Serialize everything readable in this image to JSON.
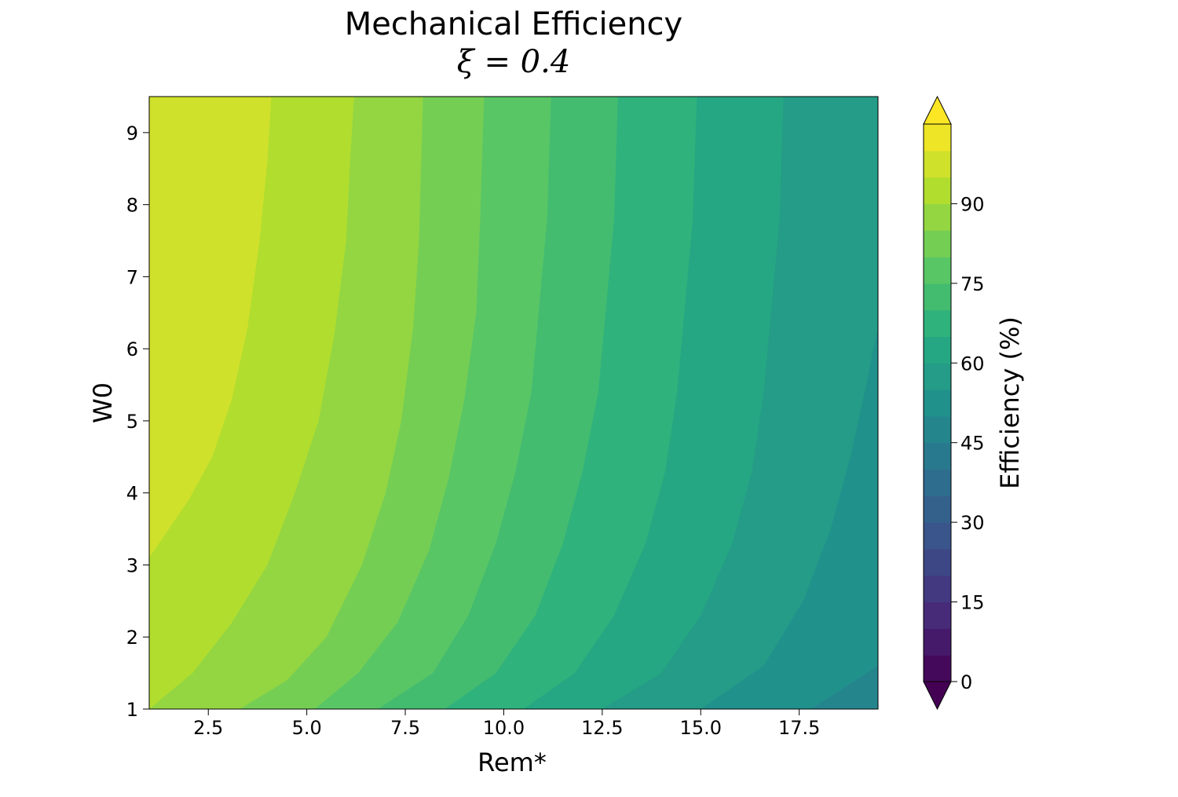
{
  "chart_data": {
    "type": "contour",
    "title": "Mechanical Efficiency",
    "subtitle": "ξ = 0.4",
    "xlabel": "Rem*",
    "ylabel": "W0",
    "xlim": [
      1.0,
      19.5
    ],
    "ylim": [
      1.0,
      9.5
    ],
    "x_ticks": [
      "2.5",
      "5.0",
      "7.5",
      "10.0",
      "12.5",
      "15.0",
      "17.5"
    ],
    "y_ticks": [
      "1",
      "2",
      "3",
      "4",
      "5",
      "6",
      "7",
      "8",
      "9"
    ],
    "colorbar": {
      "label": "Efficiency (%)",
      "range": [
        0,
        105
      ],
      "level_step": 5,
      "ticks": [
        "0",
        "15",
        "30",
        "45",
        "60",
        "75",
        "90"
      ],
      "extend": "both",
      "colormap": "viridis"
    },
    "contour_boundaries": [
      {
        "level": 95,
        "points": [
          [
            1.0,
            3.1
          ],
          [
            2.0,
            3.9
          ],
          [
            2.6,
            4.5
          ],
          [
            3.1,
            5.3
          ],
          [
            3.5,
            6.3
          ],
          [
            3.8,
            7.5
          ],
          [
            4.0,
            8.6
          ],
          [
            4.1,
            9.5
          ]
        ]
      },
      {
        "level": 90,
        "points": [
          [
            1.0,
            1.0
          ],
          [
            2.1,
            1.5
          ],
          [
            3.1,
            2.2
          ],
          [
            4.0,
            3.0
          ],
          [
            4.7,
            4.0
          ],
          [
            5.3,
            5.0
          ],
          [
            5.7,
            6.2
          ],
          [
            6.0,
            7.5
          ],
          [
            6.1,
            8.6
          ],
          [
            6.2,
            9.5
          ]
        ]
      },
      {
        "level": 85,
        "points": [
          [
            3.3,
            1.0
          ],
          [
            4.5,
            1.4
          ],
          [
            5.5,
            2.0
          ],
          [
            6.4,
            3.0
          ],
          [
            7.0,
            4.0
          ],
          [
            7.4,
            5.0
          ],
          [
            7.7,
            6.3
          ],
          [
            7.85,
            7.5
          ],
          [
            7.95,
            9.5
          ]
        ]
      },
      {
        "level": 80,
        "points": [
          [
            5.2,
            1.0
          ],
          [
            6.3,
            1.5
          ],
          [
            7.3,
            2.2
          ],
          [
            8.1,
            3.2
          ],
          [
            8.6,
            4.2
          ],
          [
            9.0,
            5.3
          ],
          [
            9.3,
            6.5
          ],
          [
            9.4,
            7.8
          ],
          [
            9.5,
            9.5
          ]
        ]
      },
      {
        "level": 75,
        "points": [
          [
            6.8,
            1.0
          ],
          [
            8.2,
            1.5
          ],
          [
            9.1,
            2.3
          ],
          [
            9.8,
            3.3
          ],
          [
            10.3,
            4.3
          ],
          [
            10.7,
            5.4
          ],
          [
            10.9,
            6.6
          ],
          [
            11.1,
            7.8
          ],
          [
            11.2,
            9.5
          ]
        ]
      },
      {
        "level": 70,
        "points": [
          [
            8.5,
            1.0
          ],
          [
            9.8,
            1.5
          ],
          [
            10.8,
            2.3
          ],
          [
            11.5,
            3.3
          ],
          [
            12.0,
            4.3
          ],
          [
            12.4,
            5.4
          ],
          [
            12.6,
            6.6
          ],
          [
            12.8,
            7.8
          ],
          [
            12.9,
            9.5
          ]
        ]
      },
      {
        "level": 65,
        "points": [
          [
            10.5,
            1.0
          ],
          [
            11.8,
            1.5
          ],
          [
            12.8,
            2.3
          ],
          [
            13.6,
            3.3
          ],
          [
            14.1,
            4.3
          ],
          [
            14.4,
            5.4
          ],
          [
            14.6,
            6.6
          ],
          [
            14.8,
            7.8
          ],
          [
            14.9,
            9.5
          ]
        ]
      },
      {
        "level": 60,
        "points": [
          [
            12.5,
            1.0
          ],
          [
            14.0,
            1.5
          ],
          [
            15.0,
            2.3
          ],
          [
            15.8,
            3.3
          ],
          [
            16.3,
            4.3
          ],
          [
            16.6,
            5.4
          ],
          [
            16.8,
            6.6
          ],
          [
            17.0,
            7.8
          ],
          [
            17.1,
            9.5
          ]
        ]
      },
      {
        "level": 55,
        "points": [
          [
            15.0,
            1.0
          ],
          [
            16.6,
            1.6
          ],
          [
            17.6,
            2.5
          ],
          [
            18.3,
            3.5
          ],
          [
            18.8,
            4.5
          ],
          [
            19.2,
            5.5
          ],
          [
            19.5,
            6.3
          ]
        ]
      },
      {
        "level": 50,
        "points": [
          [
            17.8,
            1.0
          ],
          [
            19.5,
            1.6
          ]
        ]
      }
    ]
  }
}
